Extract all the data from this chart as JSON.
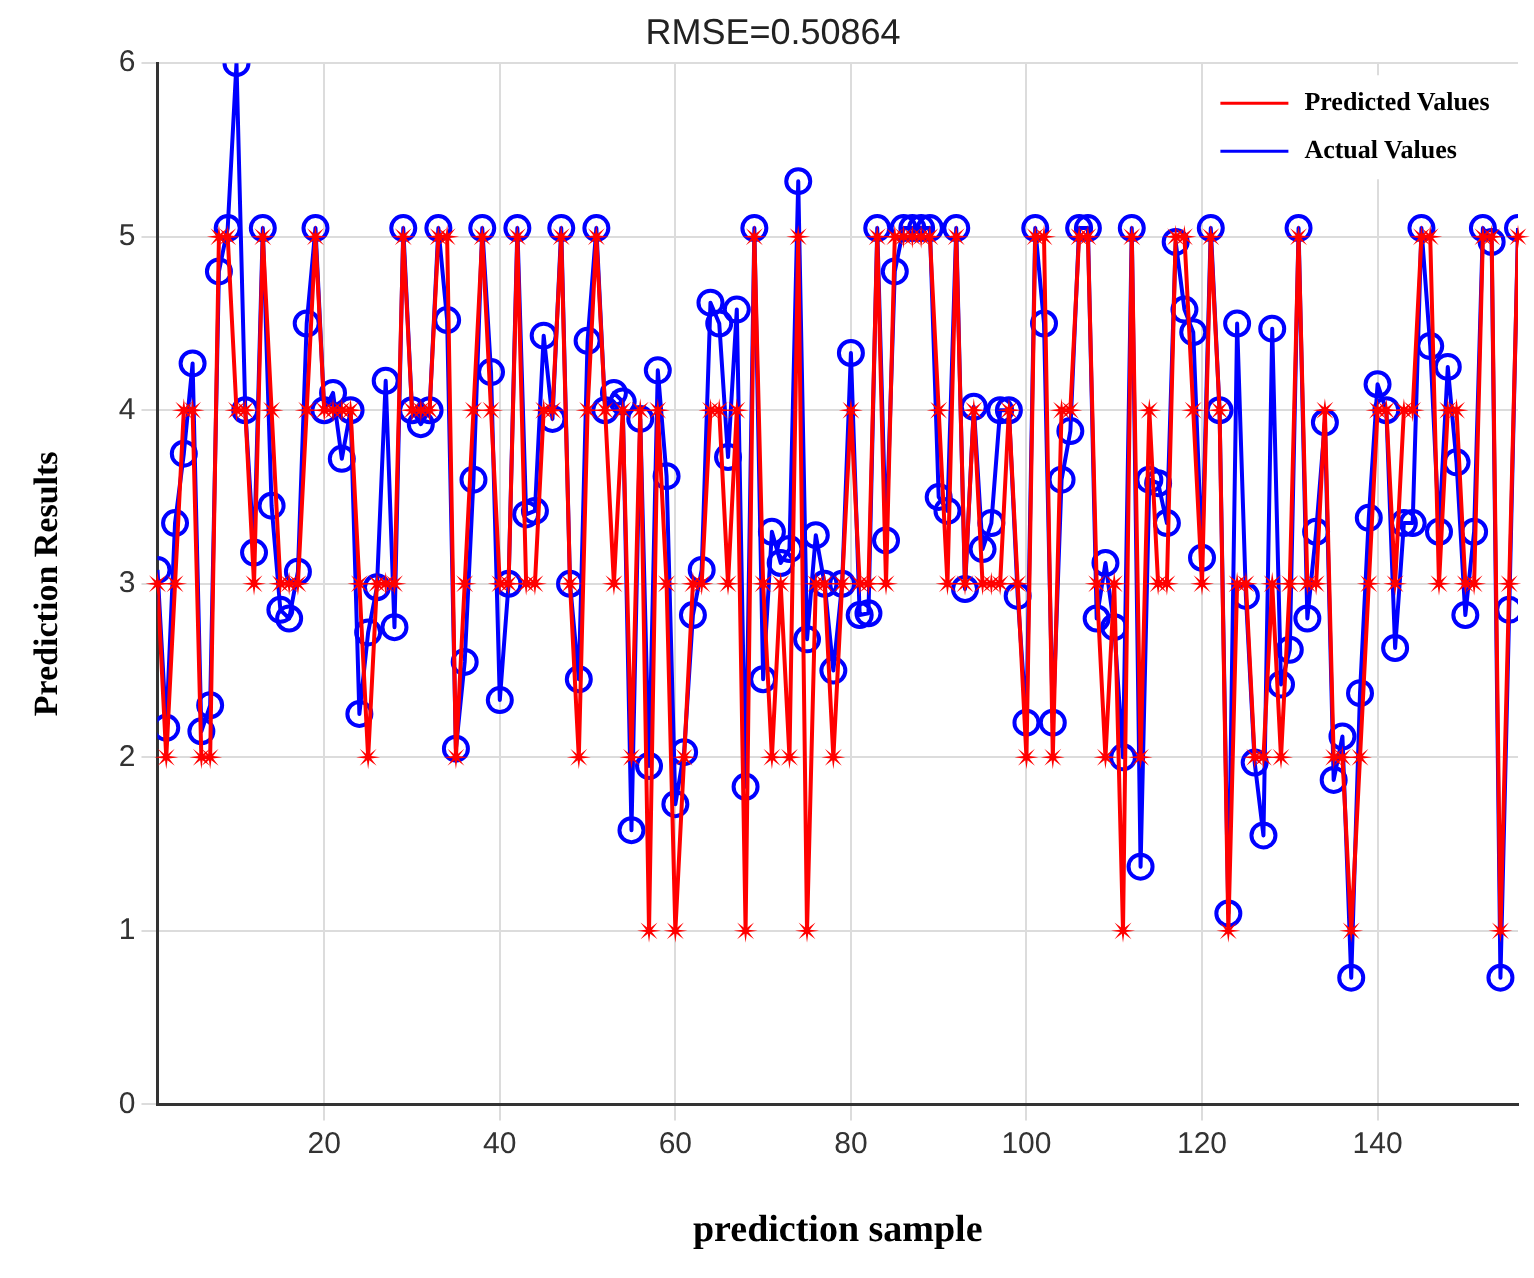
{
  "chart_data": {
    "type": "line",
    "title": "RMSE=0.50864",
    "xlabel": "prediction sample",
    "ylabel": "Prediction Results",
    "x": [
      1,
      2,
      3,
      4,
      5,
      6,
      7,
      8,
      9,
      10,
      11,
      12,
      13,
      14,
      15,
      16,
      17,
      18,
      19,
      20,
      21,
      22,
      23,
      24,
      25,
      26,
      27,
      28,
      29,
      30,
      31,
      32,
      33,
      34,
      35,
      36,
      37,
      38,
      39,
      40,
      41,
      42,
      43,
      44,
      45,
      46,
      47,
      48,
      49,
      50,
      51,
      52,
      53,
      54,
      55,
      56,
      57,
      58,
      59,
      60,
      61,
      62,
      63,
      64,
      65,
      66,
      67,
      68,
      69,
      70,
      71,
      72,
      73,
      74,
      75,
      76,
      77,
      78,
      79,
      80,
      81,
      82,
      83,
      84,
      85,
      86,
      87,
      88,
      89,
      90,
      91,
      92,
      93,
      94,
      95,
      96,
      97,
      98,
      99,
      100,
      101,
      102,
      103,
      104,
      105,
      106,
      107,
      108,
      109,
      110,
      111,
      112,
      113,
      114,
      115,
      116,
      117,
      118,
      119,
      120,
      121,
      122,
      123,
      124,
      125,
      126,
      127,
      128,
      129,
      130,
      131,
      132,
      133,
      134,
      135,
      136,
      137,
      138,
      139,
      140,
      141,
      142,
      143,
      144,
      145,
      146,
      147,
      148,
      149,
      150,
      151,
      152,
      153,
      154,
      155,
      156
    ],
    "xlim": [
      1,
      156
    ],
    "xticks": [
      20,
      40,
      60,
      80,
      100,
      120,
      140
    ],
    "ylim": [
      0,
      6
    ],
    "yticks": [
      0,
      1,
      2,
      3,
      4,
      5,
      6
    ],
    "grid": true,
    "legend": "top right",
    "line_style": "solid",
    "series": [
      {
        "name": "Predicted Values",
        "color": "#ff0000",
        "marker": "star",
        "values": [
          3,
          2,
          3,
          4,
          4,
          2,
          2,
          5,
          5,
          4,
          4,
          3,
          5,
          4,
          3,
          3,
          3,
          4,
          5,
          4,
          4,
          4,
          4,
          3,
          2,
          3,
          3,
          3,
          5,
          4,
          4,
          4,
          5,
          5,
          2,
          3,
          4,
          5,
          4,
          3,
          3,
          5,
          3,
          3,
          4,
          4,
          5,
          3,
          2,
          4,
          5,
          4,
          3,
          4,
          2,
          4,
          1,
          4,
          3,
          1,
          2,
          3,
          3,
          4,
          4,
          3,
          4,
          1,
          5,
          3,
          2,
          3,
          2,
          5,
          1,
          3,
          3,
          2,
          3,
          4,
          3,
          3,
          5,
          3,
          5,
          5,
          5,
          5,
          5,
          4,
          3,
          5,
          3,
          4,
          3,
          3,
          3,
          4,
          3,
          2,
          5,
          5,
          2,
          4,
          4,
          5,
          5,
          3,
          2,
          3,
          1,
          5,
          2,
          4,
          3,
          3,
          5,
          5,
          4,
          3,
          5,
          4,
          1,
          3,
          3,
          2,
          2,
          3,
          2,
          3,
          5,
          3,
          3,
          4,
          2,
          2,
          1,
          2,
          3,
          4,
          4,
          3,
          4,
          4,
          5,
          5,
          3,
          4,
          4,
          3,
          3,
          5,
          5,
          1,
          3,
          5
        ]
      },
      {
        "name": "Actual Values",
        "color": "#0000ff",
        "marker": "circle",
        "values": [
          3.08,
          2.17,
          3.35,
          3.75,
          4.27,
          2.15,
          2.3,
          4.8,
          5.05,
          6.0,
          4.0,
          3.18,
          5.05,
          3.45,
          2.85,
          2.8,
          3.07,
          4.5,
          5.05,
          4.0,
          4.1,
          3.72,
          4.0,
          2.25,
          2.72,
          2.98,
          4.17,
          2.75,
          5.05,
          4.0,
          3.92,
          4.0,
          5.05,
          4.52,
          2.05,
          2.55,
          3.6,
          5.05,
          4.22,
          2.33,
          3.0,
          5.05,
          3.4,
          3.42,
          4.43,
          3.95,
          5.05,
          3.0,
          2.45,
          4.4,
          5.05,
          4.0,
          4.1,
          4.05,
          1.58,
          3.95,
          1.95,
          4.23,
          3.62,
          1.73,
          2.03,
          2.82,
          3.08,
          4.62,
          4.5,
          3.73,
          4.58,
          1.83,
          5.05,
          2.45,
          3.3,
          3.12,
          3.2,
          5.32,
          2.68,
          3.28,
          3.0,
          2.5,
          3.0,
          4.33,
          2.82,
          2.83,
          5.05,
          3.25,
          4.8,
          5.05,
          5.05,
          5.05,
          5.05,
          3.5,
          3.42,
          5.05,
          2.97,
          4.02,
          3.2,
          3.35,
          4.0,
          4.0,
          2.93,
          2.2,
          5.05,
          4.5,
          2.2,
          3.6,
          3.88,
          5.05,
          5.05,
          2.8,
          3.12,
          2.75,
          2.0,
          5.05,
          1.37,
          3.6,
          3.58,
          3.35,
          4.97,
          4.58,
          4.45,
          3.15,
          5.05,
          4.0,
          1.1,
          4.5,
          2.93,
          1.97,
          1.55,
          4.47,
          2.42,
          2.62,
          5.05,
          2.8,
          3.3,
          3.93,
          1.87,
          2.12,
          0.73,
          2.37,
          3.38,
          4.15,
          4.0,
          2.63,
          3.35,
          3.35,
          5.05,
          4.37,
          3.3,
          4.25,
          3.7,
          2.82,
          3.3,
          5.05,
          4.97,
          0.73,
          2.85,
          5.05
        ]
      }
    ]
  }
}
